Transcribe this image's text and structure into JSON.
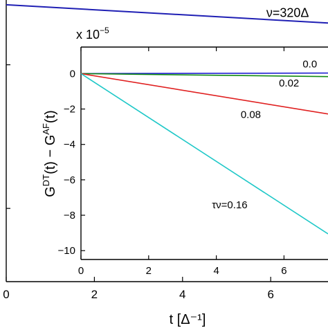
{
  "chart_data": [
    {
      "type": "line",
      "role": "main",
      "xlabel": "t [Δ⁻¹]",
      "xlim": [
        0,
        7.3
      ],
      "x_ticks": [
        0,
        2,
        4,
        6
      ],
      "x_tick_labels": [
        "0",
        "2",
        "4",
        "6"
      ],
      "series": [
        {
          "name": "ν=320Δ",
          "color": "#1f1fb4",
          "x": [
            0,
            7.3
          ],
          "y": [
            0.983,
            0.9183
          ]
        }
      ],
      "ylim": [
        0,
        1
      ],
      "annotations": [
        {
          "text": "ν=320Δ",
          "x": 5.9,
          "y": 0.94
        }
      ]
    },
    {
      "type": "line",
      "role": "inset",
      "exponent_label": "x 10",
      "exponent_power": "−5",
      "ylabel": {
        "g1": "G",
        "g1_sup": "DT",
        "mid": "(t) − G",
        "g2_sup": "AF",
        "end": "(t)"
      },
      "xlim": [
        0,
        7.3
      ],
      "ylim": [
        -10.5,
        1.5
      ],
      "x_ticks": [
        0,
        2,
        4,
        6
      ],
      "x_tick_labels": [
        "0",
        "2",
        "4",
        "6"
      ],
      "y_ticks": [
        0,
        -2,
        -4,
        -6,
        -8,
        -10
      ],
      "y_tick_labels": [
        "0",
        "−2",
        "−4",
        "−6",
        "−8",
        "−10"
      ],
      "series": [
        {
          "name": "0.0",
          "color": "#1f1fd0",
          "x": [
            0,
            7.3
          ],
          "y": [
            0,
            0.03
          ]
        },
        {
          "name": "0.02",
          "color": "#118a11",
          "x": [
            0,
            7.3
          ],
          "y": [
            0,
            -0.17
          ]
        },
        {
          "name": "0.08",
          "color": "#e02020",
          "x": [
            0,
            7.3
          ],
          "y": [
            0,
            -2.28
          ]
        },
        {
          "name": "τν=0.16",
          "color": "#1fc8c8",
          "x": [
            0,
            7.3
          ],
          "y": [
            0,
            -9.05
          ]
        }
      ],
      "annotations": [
        {
          "text": "0.0",
          "x": 6.55,
          "y": 0.35
        },
        {
          "text": "0.02",
          "x": 5.85,
          "y": -0.72
        },
        {
          "text": "0.08",
          "x": 4.72,
          "y": -2.5
        },
        {
          "text": "τν=0.16",
          "x": 3.87,
          "y": -7.6
        }
      ]
    }
  ]
}
